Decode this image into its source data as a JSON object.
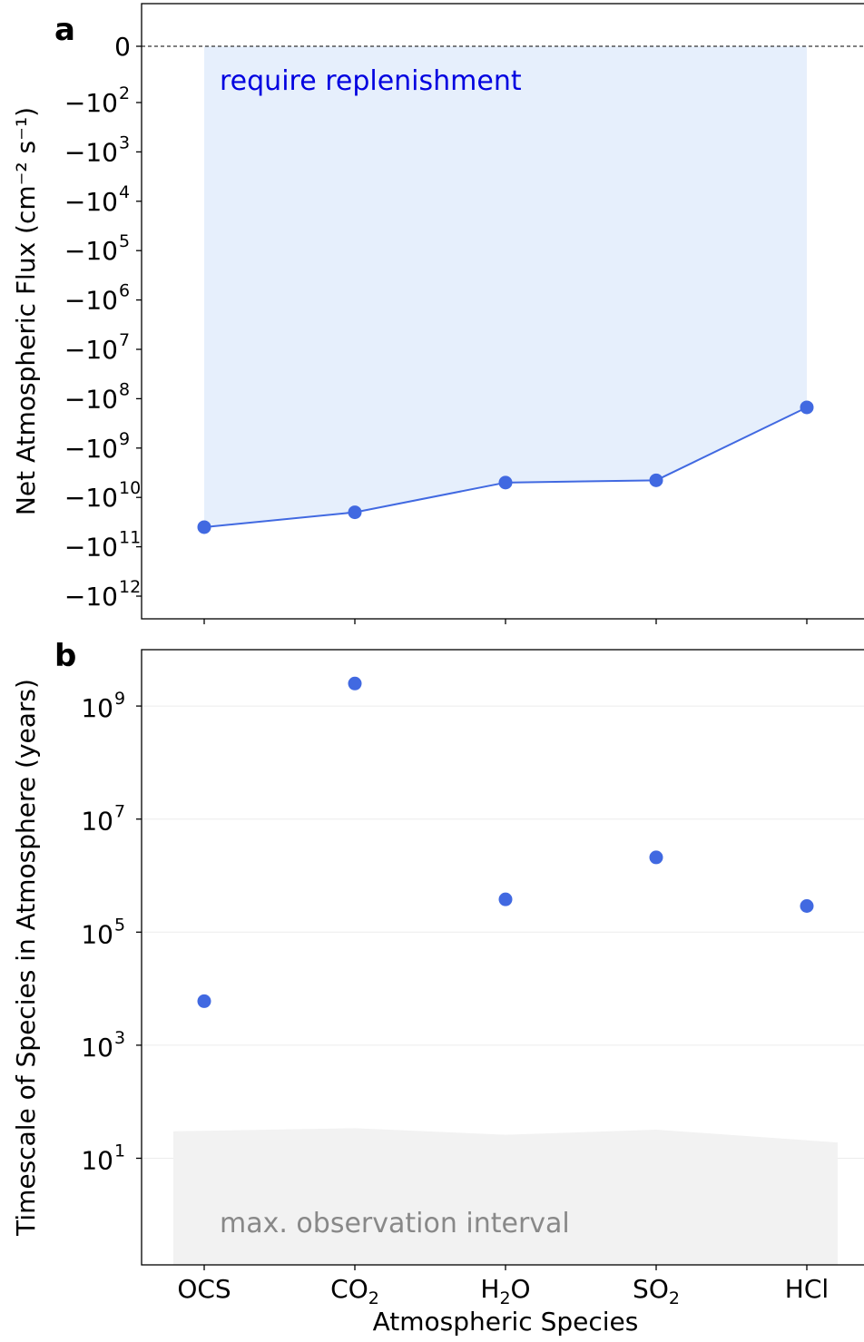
{
  "chart_data": [
    {
      "panel_label": "a",
      "type": "line",
      "categories": [
        "OCS",
        "CO2",
        "H2O",
        "SO2",
        "HCl"
      ],
      "y_scale": "symlog (negative)",
      "ylabel": "Net Atmospheric Flux (cm⁻² s⁻¹)",
      "yticks": [
        {
          "label": "0",
          "exp": null
        },
        {
          "label": "−10",
          "exp": "2"
        },
        {
          "label": "−10",
          "exp": "3"
        },
        {
          "label": "−10",
          "exp": "4"
        },
        {
          "label": "−10",
          "exp": "5"
        },
        {
          "label": "−10",
          "exp": "6"
        },
        {
          "label": "−10",
          "exp": "7"
        },
        {
          "label": "−10",
          "exp": "8"
        },
        {
          "label": "−10",
          "exp": "9"
        },
        {
          "label": "−10",
          "exp": "10"
        },
        {
          "label": "−10",
          "exp": "11"
        },
        {
          "label": "−10",
          "exp": "12"
        }
      ],
      "series": [
        {
          "values": [
            -40000000000.0,
            -20000000000.0,
            -5000000000.0,
            -4500000000.0,
            -150000000.0
          ],
          "color": "#4169e1"
        }
      ],
      "zero_line": {
        "value": 0,
        "style": "dashed"
      },
      "region": {
        "label": "require replenishment",
        "color": "#e6effc",
        "text_color": "#0000e0"
      }
    },
    {
      "panel_label": "b",
      "type": "scatter",
      "categories": [
        "OCS",
        "CO2",
        "H2O",
        "SO2",
        "HCl"
      ],
      "y_scale": "log",
      "ylim": [
        0.2,
        10000000000.0
      ],
      "ylabel": "Timescale of Species in Atmosphere (years)",
      "xlabel": "Atmospheric Species",
      "yticks": [
        {
          "label": "10",
          "exp": "1"
        },
        {
          "label": "10",
          "exp": "3"
        },
        {
          "label": "10",
          "exp": "5"
        },
        {
          "label": "10",
          "exp": "7"
        },
        {
          "label": "10",
          "exp": "9"
        }
      ],
      "grid": true,
      "series": [
        {
          "values": [
            6000,
            2500000000.0,
            380000.0,
            2100000.0,
            290000.0
          ],
          "color": "#4169e1"
        }
      ],
      "region": {
        "label": "max. observation interval",
        "color": "#f2f2f2",
        "text_color": "#888888",
        "upper_values": [
          30,
          34,
          26,
          32,
          19
        ]
      }
    }
  ],
  "x_tick_labels": [
    {
      "base": "OCS",
      "sub": ""
    },
    {
      "base": "CO",
      "sub": "2"
    },
    {
      "base": "H",
      "sub": "2",
      "tail": "O"
    },
    {
      "base": "SO",
      "sub": "2"
    },
    {
      "base": "HCl",
      "sub": ""
    }
  ]
}
